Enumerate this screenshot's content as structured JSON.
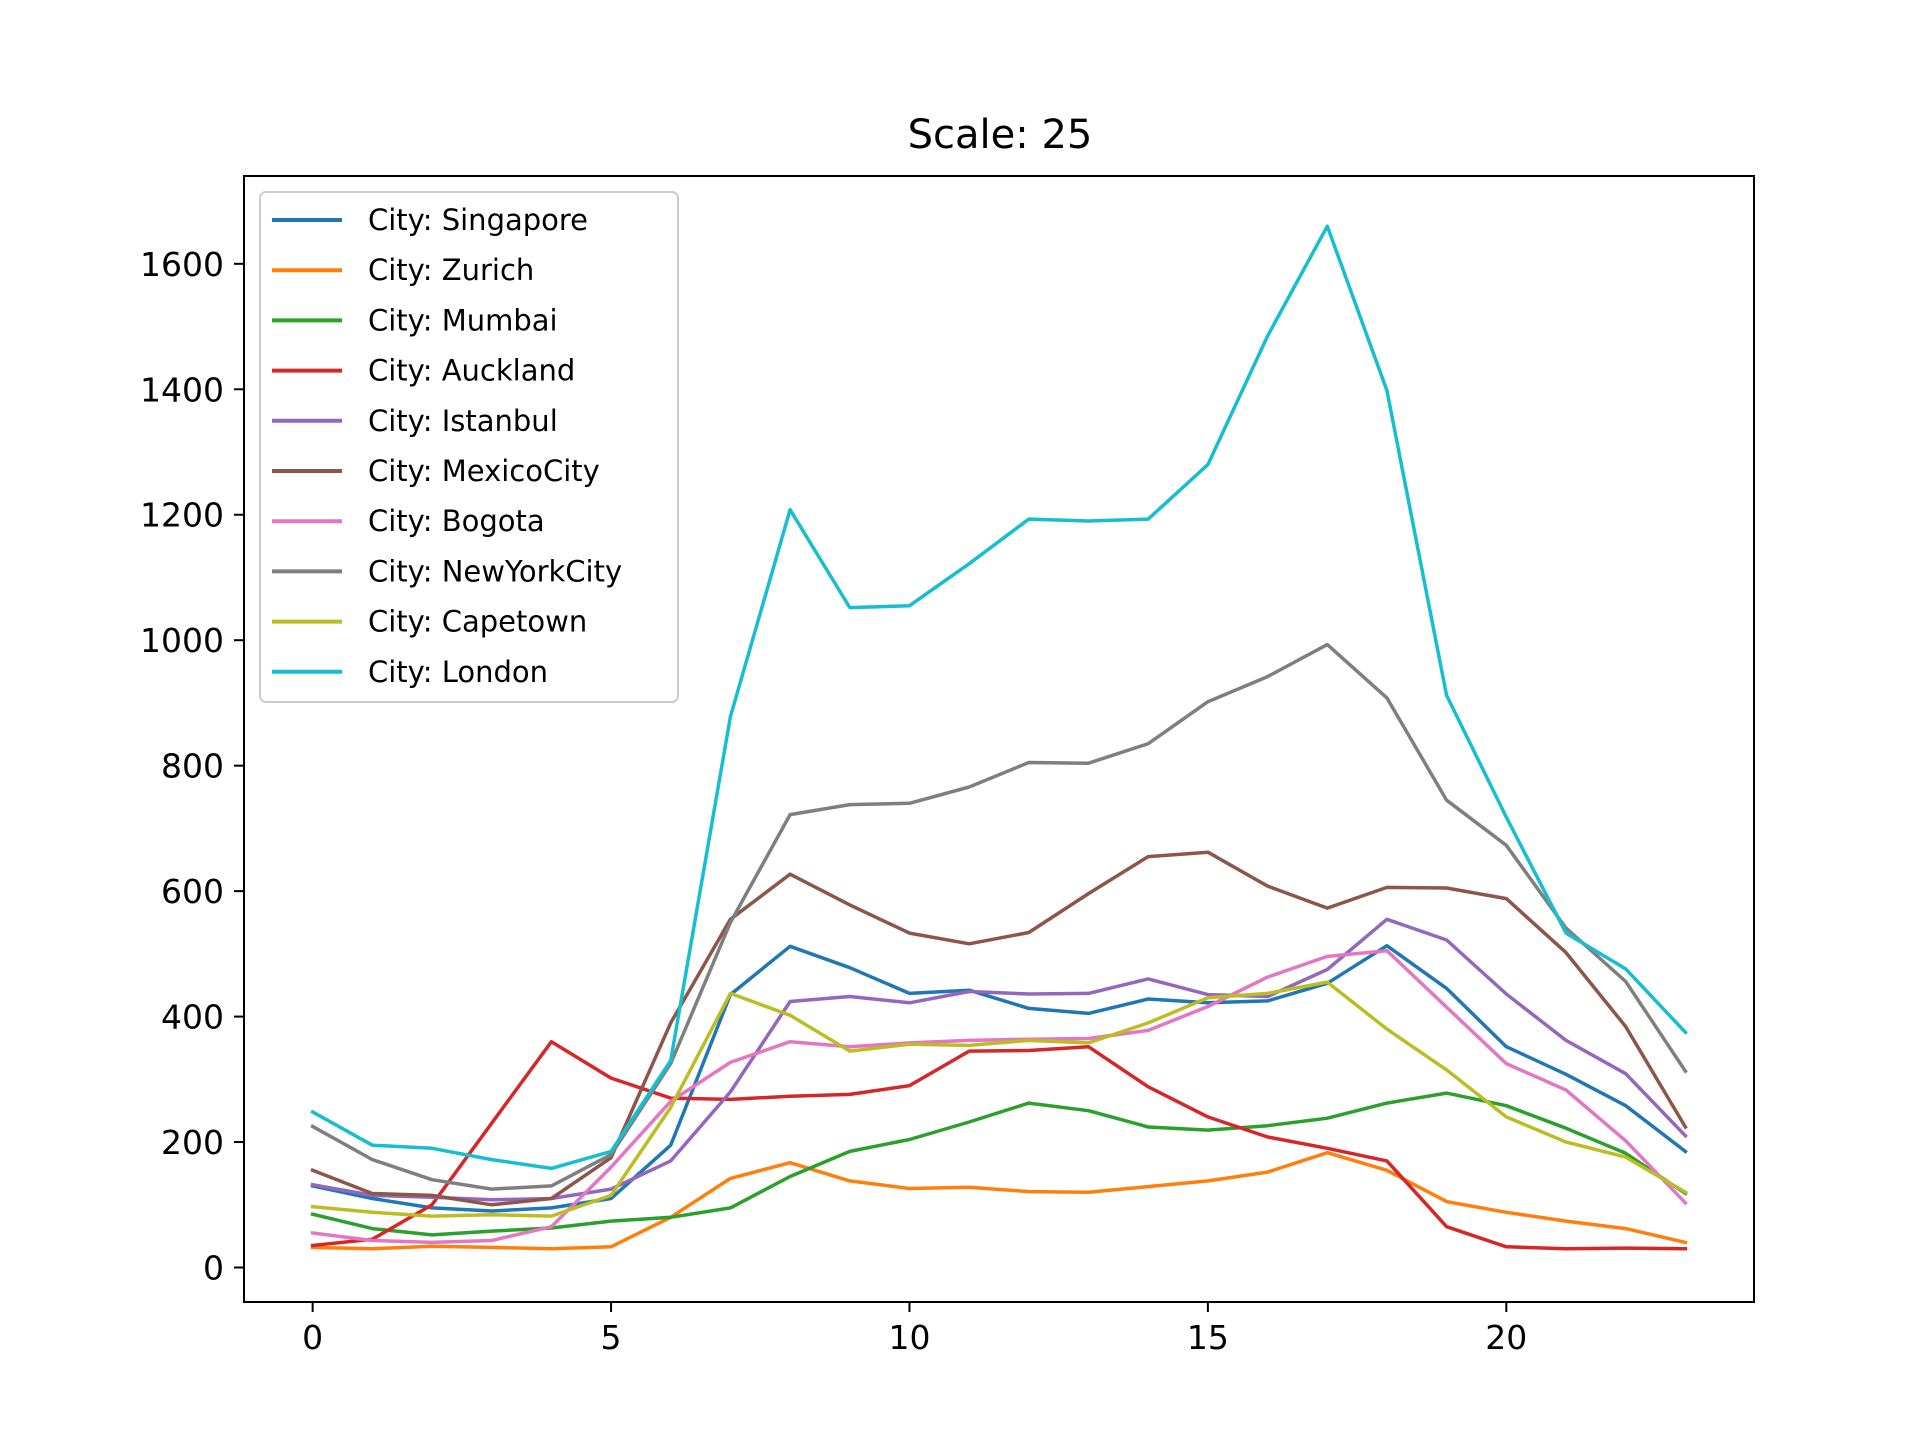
{
  "chart_data": {
    "type": "line",
    "title": "Scale: 25",
    "xlabel": "",
    "ylabel": "",
    "xlim": [
      -1.15,
      24.15
    ],
    "ylim": [
      -55,
      1740
    ],
    "xticks": [
      0,
      5,
      10,
      15,
      20
    ],
    "yticks": [
      0,
      200,
      400,
      600,
      800,
      1000,
      1200,
      1400,
      1600
    ],
    "grid": false,
    "legend_position": "top-left",
    "x": [
      0,
      1,
      2,
      3,
      4,
      5,
      6,
      7,
      8,
      9,
      10,
      11,
      12,
      13,
      14,
      15,
      16,
      17,
      18,
      19,
      20,
      21,
      22,
      23
    ],
    "series": [
      {
        "name": "City: Singapore",
        "color": "#1f77b4",
        "values": [
          130,
          110,
          95,
          90,
          95,
          110,
          195,
          435,
          512,
          478,
          437,
          442,
          413,
          405,
          428,
          422,
          425,
          453,
          513,
          445,
          352,
          308,
          258,
          185
        ]
      },
      {
        "name": "City: Zurich",
        "color": "#ff7f0e",
        "values": [
          32,
          30,
          34,
          32,
          30,
          33,
          80,
          142,
          167,
          138,
          126,
          128,
          121,
          120,
          129,
          138,
          152,
          183,
          155,
          105,
          88,
          74,
          62,
          40
        ]
      },
      {
        "name": "City: Mumbai",
        "color": "#2ca02c",
        "values": [
          85,
          62,
          52,
          58,
          63,
          74,
          80,
          95,
          145,
          185,
          204,
          232,
          262,
          250,
          224,
          219,
          226,
          238,
          262,
          278,
          258,
          222,
          182,
          118
        ]
      },
      {
        "name": "City: Auckland",
        "color": "#d62728",
        "values": [
          35,
          45,
          100,
          230,
          360,
          302,
          270,
          268,
          273,
          276,
          290,
          345,
          346,
          352,
          288,
          240,
          208,
          190,
          170,
          65,
          33,
          30,
          31,
          30
        ]
      },
      {
        "name": "City: Istanbul",
        "color": "#9467bd",
        "values": [
          132,
          115,
          112,
          108,
          110,
          125,
          170,
          280,
          424,
          432,
          422,
          440,
          436,
          437,
          460,
          435,
          432,
          475,
          555,
          522,
          436,
          362,
          309,
          210
        ]
      },
      {
        "name": "City: MexicoCity",
        "color": "#8c564b",
        "values": [
          155,
          118,
          115,
          100,
          110,
          175,
          390,
          555,
          627,
          578,
          533,
          516,
          534,
          596,
          655,
          662,
          608,
          573,
          606,
          605,
          588,
          502,
          384,
          224
        ]
      },
      {
        "name": "City: Bogota",
        "color": "#e377c2",
        "values": [
          55,
          43,
          40,
          43,
          65,
          160,
          265,
          327,
          360,
          352,
          358,
          362,
          364,
          365,
          378,
          416,
          463,
          496,
          505,
          415,
          325,
          283,
          202,
          103
        ]
      },
      {
        "name": "City: NewYorkCity",
        "color": "#7f7f7f",
        "values": [
          225,
          172,
          140,
          125,
          130,
          180,
          325,
          550,
          722,
          738,
          740,
          766,
          805,
          804,
          835,
          902,
          942,
          993,
          908,
          745,
          673,
          541,
          456,
          313
        ]
      },
      {
        "name": "City: Capetown",
        "color": "#bcbd22",
        "values": [
          97,
          88,
          82,
          84,
          82,
          115,
          255,
          437,
          402,
          345,
          356,
          354,
          362,
          358,
          390,
          430,
          437,
          455,
          380,
          315,
          240,
          200,
          176,
          120
        ]
      },
      {
        "name": "City: London",
        "color": "#17becf",
        "values": [
          248,
          195,
          190,
          172,
          158,
          185,
          330,
          878,
          1208,
          1052,
          1055,
          1122,
          1193,
          1190,
          1193,
          1280,
          1485,
          1660,
          1398,
          912,
          718,
          533,
          476,
          375
        ]
      }
    ]
  }
}
